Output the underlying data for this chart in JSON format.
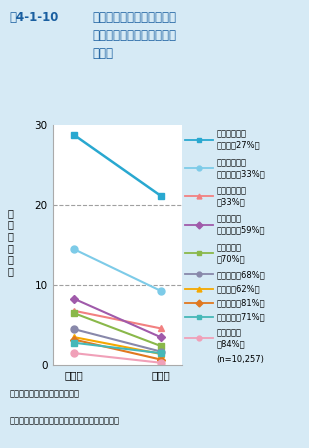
{
  "title_fig": "図4-1-10",
  "title_main": "高断熱高気密住宅への転居\nによる有病率の変化と疾病\n改善率",
  "xlabel_before": "転居前",
  "xlabel_after": "転居後",
  "ylabel_chars": [
    "有",
    "病",
    "率",
    "（",
    "％",
    "）"
  ],
  "note": "注：（　）内は改善率を示す。",
  "source": "資料：岩前篤・近畿大学建築学部教授研究データ",
  "n_label": "(n=10,257)",
  "background": "#d6eaf5",
  "plot_bg": "#ffffff",
  "series": [
    {
      "name_l1": "アレルギー性",
      "name_l2": "鼻炎　（27%）",
      "before": 28.8,
      "after": 21.2,
      "color": "#29a8d0",
      "marker": "s",
      "markersize": 5,
      "linewidth": 1.8
    },
    {
      "name_l1": "アレルギー性",
      "name_l2": "結膜炎　（33%）",
      "before": 14.5,
      "after": 9.3,
      "color": "#7dcbe8",
      "marker": "o",
      "markersize": 5,
      "linewidth": 1.5
    },
    {
      "name_l1": "高血圧性疾患",
      "name_l2": "（33%）",
      "before": 6.8,
      "after": 4.6,
      "color": "#f28080",
      "marker": "^",
      "markersize": 5,
      "linewidth": 1.5
    },
    {
      "name_l1": "アトピー性",
      "name_l2": "皮膚炎　（59%）",
      "before": 8.3,
      "after": 3.5,
      "color": "#a05aaa",
      "marker": "D",
      "markersize": 4,
      "linewidth": 1.5
    },
    {
      "name_l1": "気管支喘息",
      "name_l2": "（70%）",
      "before": 6.5,
      "after": 2.4,
      "color": "#8ab84a",
      "marker": "s",
      "markersize": 5,
      "linewidth": 1.5
    },
    {
      "name_l1": "関節炎　（68%）",
      "name_l2": "",
      "before": 4.5,
      "after": 1.7,
      "color": "#8888aa",
      "marker": "o",
      "markersize": 5,
      "linewidth": 1.5
    },
    {
      "name_l1": "肺炎　（62%）",
      "name_l2": "",
      "before": 3.5,
      "after": 1.4,
      "color": "#f5a800",
      "marker": "^",
      "markersize": 5,
      "linewidth": 1.5
    },
    {
      "name_l1": "心疾患　（81%）",
      "name_l2": "",
      "before": 3.2,
      "after": 0.7,
      "color": "#e07820",
      "marker": "D",
      "markersize": 4,
      "linewidth": 1.5
    },
    {
      "name_l1": "糖尿病　（71%）",
      "name_l2": "",
      "before": 2.8,
      "after": 1.5,
      "color": "#45b8b8",
      "marker": "s",
      "markersize": 5,
      "linewidth": 1.5
    },
    {
      "name_l1": "脳血管疾患",
      "name_l2": "（84%）",
      "before": 1.5,
      "after": 0.3,
      "color": "#f0a0b8",
      "marker": "o",
      "markersize": 5,
      "linewidth": 1.5
    }
  ],
  "ylim": [
    0,
    30
  ],
  "yticks": [
    0,
    10,
    20,
    30
  ],
  "dashed_lines": [
    10,
    20
  ],
  "title_fig_color": "#1a5fa0",
  "title_main_color": "#1a5fa0"
}
